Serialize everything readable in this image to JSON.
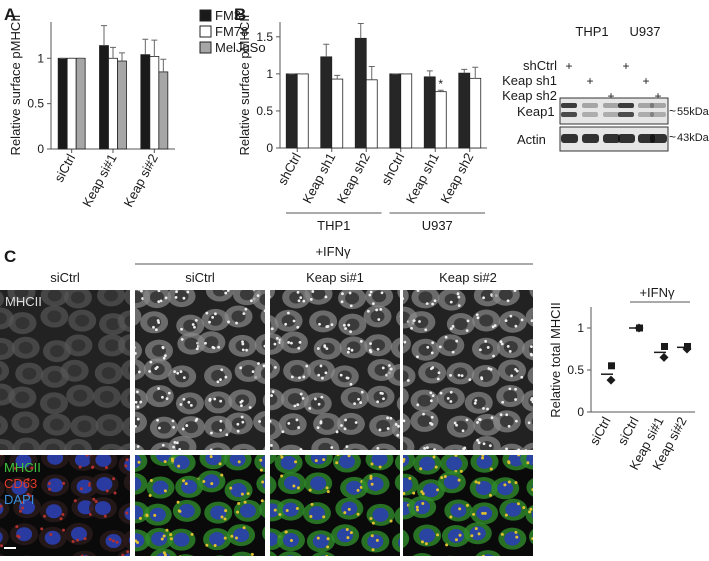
{
  "chart_data": [
    {
      "type": "bar",
      "panel": "A",
      "ylabel": "Relative surface pMHCII",
      "categories": [
        "siCtrl",
        "Keap si#1",
        "Keap si#2"
      ],
      "series": [
        {
          "name": "FM3",
          "color": "#1a1a1a",
          "values": [
            1,
            1.14,
            1.04
          ],
          "errors": [
            0,
            0.22,
            0.17
          ]
        },
        {
          "name": "FM78",
          "color": "#ffffff",
          "values": [
            1,
            1.0,
            1.02
          ],
          "errors": [
            0,
            0.12,
            0.18
          ]
        },
        {
          "name": "MelJuSo",
          "color": "#a6a6a6",
          "values": [
            1,
            0.97,
            0.85
          ],
          "errors": [
            0,
            0.09,
            0.14
          ]
        }
      ],
      "ylim": [
        0,
        1.4
      ],
      "yticks": [
        0,
        0.5,
        1
      ],
      "legend": "right"
    },
    {
      "type": "bar",
      "panel": "B",
      "ylabel": "Relative surface pMHCII",
      "categories": [
        "shCtrl",
        "Keap sh1",
        "Keap sh2",
        "shCtrl",
        "Keap sh1",
        "Keap sh2"
      ],
      "series": [
        {
          "color": "#262626",
          "values": [
            1,
            1.23,
            1.48,
            1.0,
            0.96,
            1.01
          ],
          "errors": [
            0,
            0.17,
            0.2,
            0,
            0.08,
            0.05
          ]
        },
        {
          "color": "#ffffff",
          "values": [
            1,
            0.93,
            0.92,
            1.0,
            0.76,
            0.94
          ],
          "errors": [
            0,
            0.05,
            0.18,
            0,
            0.02,
            0.15
          ]
        }
      ],
      "groups": [
        "THP1",
        "U937"
      ],
      "annotation": "*",
      "ylim": [
        0,
        1.7
      ],
      "yticks": [
        0,
        0.5,
        1,
        1.5
      ]
    },
    {
      "type": "dot",
      "ylabel": "Relative total MHCII",
      "categories": [
        "siCtrl",
        "siCtrl",
        "Keap si#1",
        "Keap si#2"
      ],
      "group_label": "+IFNγ",
      "series": [
        {
          "marker": "square",
          "color": "#1a1a1a",
          "values": [
            0.55,
            1.0,
            0.78,
            0.78
          ]
        },
        {
          "marker": "diamond",
          "color": "#1a1a1a",
          "values": [
            0.38,
            1.0,
            0.65,
            0.75
          ]
        },
        {
          "marker": "line",
          "color": "#1a1a1a",
          "values": [
            0.45,
            1.0,
            0.71,
            0.77
          ]
        }
      ],
      "ylim": [
        0,
        1.25
      ],
      "yticks": [
        0,
        0.5,
        1
      ]
    }
  ],
  "panel_c": {
    "letter": "C",
    "group_label": "+IFNγ",
    "columns": [
      "siCtrl",
      "siCtrl",
      "Keap si#1",
      "Keap si#2"
    ],
    "row1_label": "MHCII",
    "row2_labels": [
      "MHCII",
      "CD63",
      "DAPI"
    ]
  },
  "blot": {
    "cells": [
      "THP1",
      "U937"
    ],
    "rows": [
      {
        "label": "shCtrl",
        "marks": [
          "+",
          null,
          null,
          "+",
          null,
          null
        ]
      },
      {
        "label": "Keap sh1",
        "marks": [
          null,
          "+",
          null,
          null,
          "+",
          null
        ]
      },
      {
        "label": "Keap sh2",
        "marks": [
          null,
          null,
          "+",
          null,
          null,
          "+"
        ]
      }
    ],
    "bands": [
      "Keap1",
      "Actin"
    ],
    "sizes": [
      "55kDa",
      "43kDa"
    ]
  }
}
